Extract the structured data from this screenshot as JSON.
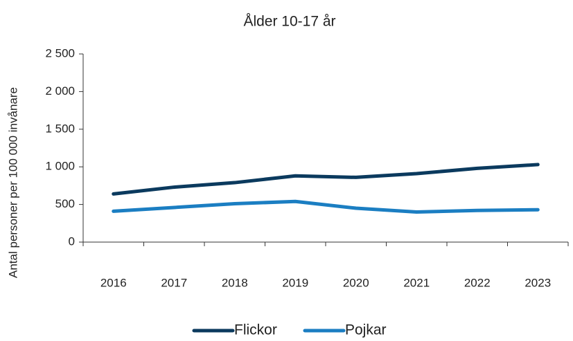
{
  "chart_data": {
    "type": "line",
    "title": "Ålder 10-17 år",
    "y_label": "Antal personer per 100 000 invånare",
    "categories": [
      "2016",
      "2017",
      "2018",
      "2019",
      "2020",
      "2021",
      "2022",
      "2023"
    ],
    "series": [
      {
        "name": "Flickor",
        "color": "#0b3a5e",
        "values": [
          640,
          730,
          790,
          880,
          860,
          910,
          980,
          1030
        ]
      },
      {
        "name": "Pojkar",
        "color": "#1b7ec2",
        "values": [
          410,
          460,
          510,
          540,
          450,
          400,
          420,
          430
        ]
      }
    ],
    "ylim": [
      0,
      2500
    ],
    "yticks": [
      0,
      500,
      {
        "value": 1000,
        "label": "1 000"
      },
      {
        "value": 1500,
        "label": "1 500"
      },
      {
        "value": 2000,
        "label": "2 000"
      },
      {
        "value": 2500,
        "label": "2 500"
      }
    ],
    "grid": false,
    "legend": "bottom"
  }
}
